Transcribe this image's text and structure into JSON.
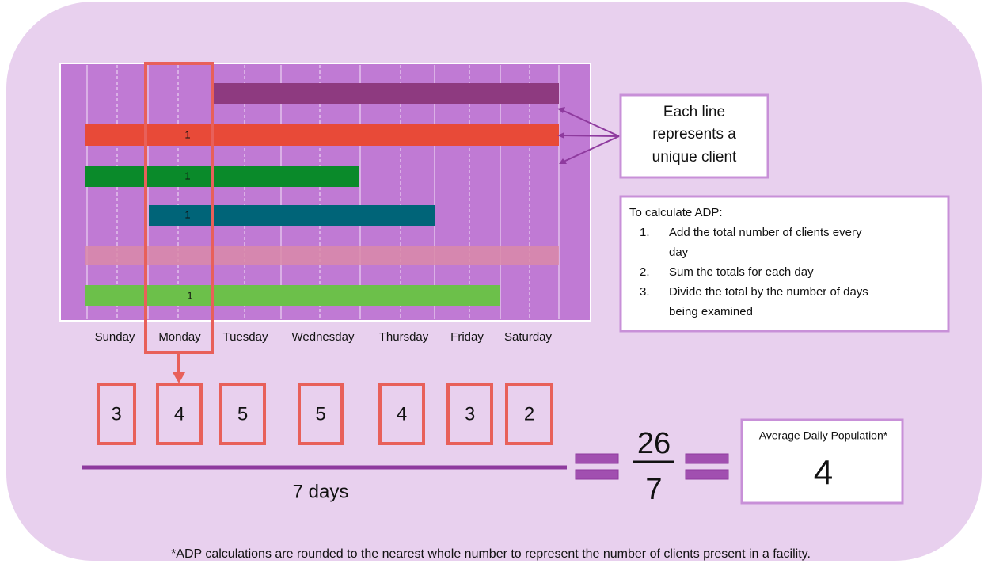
{
  "chart": {
    "days": [
      "Sunday",
      "Monday",
      "Tuesday",
      "Wednesday",
      "Thursday",
      "Friday",
      "Saturday"
    ],
    "bar_labels": [
      "1",
      "1",
      "1",
      "1"
    ]
  },
  "callout": {
    "lines": [
      "Each line",
      "represents a",
      "unique client"
    ]
  },
  "instructions": {
    "title": "To calculate ADP:",
    "steps": [
      {
        "number": "1.",
        "lines": [
          "Add the total number of clients every",
          "day"
        ]
      },
      {
        "number": "2.",
        "lines": [
          "Sum the totals for each day"
        ]
      },
      {
        "number": "3.",
        "lines": [
          "Divide the total by the number of days",
          "being examined"
        ]
      }
    ]
  },
  "counts": [
    "3",
    "4",
    "5",
    "5",
    "4",
    "3",
    "2"
  ],
  "denominator_label": "7 days",
  "fraction": {
    "numerator": "26",
    "denominator": "7"
  },
  "result": {
    "label": "Average Daily Population*",
    "value": "4"
  },
  "footnote": "*ADP calculations are rounded to the nearest whole number to represent the number of clients present in a facility."
}
